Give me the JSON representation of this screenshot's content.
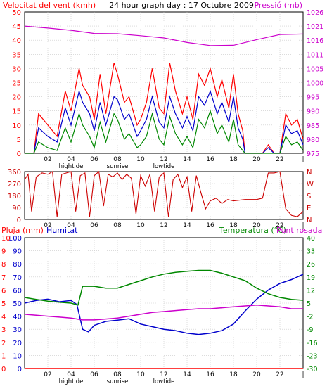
{
  "header": {
    "left_label": "Velocitat del vent (kmh)",
    "center_title": "24 hour graph day : 17 Octubre 2009",
    "right_label": "Pressió (mb)"
  },
  "chart_data": [
    {
      "type": "line",
      "panel": "wind-pressure",
      "x_ticks": [
        "02",
        "04",
        "06",
        "08",
        "10",
        "12",
        "14",
        "16",
        "18",
        "20",
        "22",
        "|"
      ],
      "y_left": {
        "label": "Velocitat del vent (kmh)",
        "ticks": [
          0,
          5,
          10,
          15,
          20,
          25,
          30,
          35,
          40,
          45,
          50
        ],
        "ylim": [
          0,
          50
        ],
        "color": "#ff0000"
      },
      "y_right": {
        "label": "Pressió (mb)",
        "ticks": [
          975,
          980,
          985,
          990,
          995,
          1000,
          1005,
          1011,
          1016,
          1021,
          1026
        ],
        "color": "#cc00cc"
      },
      "annotations": [
        "hightide",
        "sunrise",
        "lowtide"
      ],
      "series": [
        {
          "color": "#cc00cc",
          "axis": "right",
          "x": [
            0,
            2,
            4,
            6,
            8,
            10,
            12,
            14,
            16,
            18,
            20,
            22,
            24
          ],
          "y": [
            1021,
            1020.3,
            1019.5,
            1018.4,
            1018.3,
            1017.6,
            1016.8,
            1015.2,
            1014.1,
            1014.2,
            1016.2,
            1018,
            1018.2
          ]
        },
        {
          "color": "#ff0000",
          "axis": "left",
          "x": [
            0,
            0.8,
            1.2,
            2,
            2.8,
            3.5,
            4,
            4.7,
            5,
            5.6,
            6,
            6.5,
            7,
            7.7,
            8,
            8.6,
            9,
            9.7,
            10,
            10.5,
            11,
            11.6,
            12,
            12.5,
            13,
            13.6,
            14,
            14.5,
            15,
            15.5,
            16,
            16.6,
            17,
            17.6,
            18,
            18.4,
            18.8,
            19,
            20,
            20.5,
            21,
            21.5,
            22,
            22.5,
            23,
            23.5,
            24
          ],
          "y": [
            0,
            0,
            14,
            10,
            6,
            22,
            15,
            30,
            24,
            20,
            12,
            28,
            14,
            32,
            28,
            18,
            20,
            10,
            12,
            18,
            30,
            16,
            14,
            32,
            22,
            14,
            20,
            12,
            28,
            24,
            30,
            20,
            26,
            16,
            28,
            14,
            8,
            0,
            0,
            0,
            3,
            0,
            0,
            14,
            10,
            12,
            5
          ]
        },
        {
          "color": "#0000cc",
          "axis": "left",
          "x": [
            0,
            0.8,
            1.2,
            2,
            2.8,
            3.5,
            4,
            4.7,
            5,
            5.6,
            6,
            6.5,
            7,
            7.7,
            8,
            8.6,
            9,
            9.7,
            10,
            10.5,
            11,
            11.6,
            12,
            12.5,
            13,
            13.6,
            14,
            14.5,
            15,
            15.5,
            16,
            16.6,
            17,
            17.6,
            18,
            18.4,
            18.8,
            19,
            20,
            20.5,
            21,
            21.5,
            22,
            22.5,
            23,
            23.5,
            24
          ],
          "y": [
            0,
            0,
            9,
            6,
            4,
            16,
            10,
            22,
            18,
            14,
            8,
            18,
            10,
            20,
            19,
            12,
            14,
            6,
            8,
            12,
            20,
            11,
            9,
            20,
            14,
            9,
            13,
            8,
            20,
            17,
            22,
            14,
            18,
            11,
            20,
            9,
            5,
            0,
            0,
            0,
            2,
            0,
            0,
            10,
            7,
            8,
            3
          ]
        },
        {
          "color": "#008800",
          "axis": "left",
          "x": [
            0,
            0.8,
            1.2,
            2,
            2.8,
            3.5,
            4,
            4.7,
            5,
            5.6,
            6,
            6.5,
            7,
            7.7,
            8,
            8.6,
            9,
            9.7,
            10,
            10.5,
            11,
            11.6,
            12,
            12.5,
            13,
            13.6,
            14,
            14.5,
            15,
            15.5,
            16,
            16.6,
            17,
            17.6,
            18,
            18.4,
            18.8,
            19,
            20,
            20.5,
            21,
            21.5,
            22,
            22.5,
            23,
            23.5,
            24
          ],
          "y": [
            0,
            0,
            4,
            2,
            1,
            9,
            4,
            14,
            10,
            6,
            2,
            11,
            4,
            14,
            12,
            5,
            7,
            2,
            3,
            6,
            14,
            5,
            3,
            13,
            7,
            3,
            6,
            2,
            12,
            9,
            15,
            7,
            10,
            4,
            12,
            3,
            1,
            0,
            0,
            0,
            0,
            0,
            0,
            6,
            3,
            4,
            1
          ]
        }
      ]
    },
    {
      "type": "line",
      "panel": "wind-direction",
      "x_ticks": [
        "02",
        "04",
        "06",
        "08",
        "10",
        "12",
        "14",
        "16",
        "18",
        "20",
        "22",
        "|"
      ],
      "y_left": {
        "ticks": [
          0,
          90,
          180,
          270,
          360
        ],
        "ylim": [
          0,
          360
        ]
      },
      "y_right": {
        "ticks": [
          "N",
          "E",
          "S",
          "W",
          "N"
        ],
        "color": "#cc0000"
      },
      "series": [
        {
          "color": "#cc0000",
          "x": [
            0,
            0.3,
            0.6,
            1,
            1.5,
            2,
            2.4,
            2.8,
            3.2,
            3.6,
            4,
            4.4,
            4.8,
            5.2,
            5.6,
            6,
            6.4,
            6.8,
            7.2,
            7.6,
            8,
            8.4,
            8.8,
            9.2,
            9.6,
            10,
            10.4,
            10.8,
            11.2,
            11.6,
            12,
            12.4,
            12.8,
            13.2,
            13.6,
            14,
            14.4,
            14.8,
            15.2,
            15.6,
            16,
            16.5,
            17,
            17.5,
            18,
            19,
            20,
            20.5,
            21,
            21.5,
            22,
            22.5,
            23,
            23.5,
            24
          ],
          "y": [
            300,
            340,
            60,
            320,
            350,
            340,
            360,
            20,
            340,
            350,
            360,
            60,
            330,
            350,
            20,
            330,
            360,
            100,
            340,
            320,
            350,
            300,
            340,
            310,
            40,
            330,
            250,
            340,
            60,
            320,
            350,
            20,
            300,
            340,
            240,
            320,
            60,
            330,
            200,
            80,
            140,
            160,
            120,
            150,
            140,
            150,
            150,
            160,
            350,
            350,
            360,
            80,
            30,
            20,
            60
          ]
        }
      ]
    },
    {
      "type": "line",
      "panel": "rain-humidity-temperature",
      "x_ticks": [
        "02",
        "04",
        "06",
        "08",
        "10",
        "12",
        "14",
        "16",
        "18",
        "20",
        "22",
        "|"
      ],
      "annotations": [
        "hightide",
        "sunrise",
        "lowtide"
      ],
      "y_left": {
        "label": "Pluja (mm)",
        "ticks": [
          0,
          1,
          2,
          3,
          4,
          5,
          6,
          7,
          8,
          9,
          10
        ],
        "color": "#ff0000"
      },
      "y_humidity": {
        "label": "Humitat",
        "ticks": [
          0,
          10,
          20,
          30,
          40,
          50,
          60,
          70,
          80,
          90,
          100
        ],
        "color": "#0000cc"
      },
      "y_right": {
        "label": "Temperatura (°C)",
        "label2": "Punt rosada",
        "ticks": [
          -30,
          -23,
          -16,
          -9,
          -2,
          5,
          12,
          19,
          26,
          33,
          40
        ],
        "color": "#008800",
        "color2": "#cc00cc"
      },
      "series": [
        {
          "name": "Humitat",
          "color": "#0000cc",
          "axis": "humidity",
          "x": [
            0,
            1,
            2,
            3,
            4,
            4.5,
            5,
            5.5,
            6,
            7,
            8,
            9,
            10,
            11,
            12,
            13,
            14,
            15,
            16,
            17,
            18,
            19,
            20,
            21,
            22,
            23,
            24
          ],
          "y": [
            50,
            52,
            53,
            51,
            52,
            49,
            30,
            28,
            33,
            36,
            37,
            38,
            34,
            32,
            30,
            29,
            27,
            26,
            27,
            29,
            34,
            44,
            53,
            60,
            65,
            68,
            72
          ]
        },
        {
          "name": "Temperatura (°C)",
          "color": "#008800",
          "axis": "right",
          "x": [
            0,
            1,
            2,
            3,
            4,
            4.6,
            5,
            6,
            7,
            8,
            9,
            10,
            11,
            12,
            13,
            14,
            15,
            16,
            17,
            18,
            19,
            20,
            21,
            22,
            23,
            24
          ],
          "y": [
            8,
            7,
            6,
            5.5,
            5,
            4,
            14,
            14,
            13,
            13,
            15,
            17,
            19,
            20.5,
            21.5,
            22,
            22.5,
            22.5,
            21,
            19,
            17,
            13,
            10,
            8,
            7,
            6.5
          ]
        },
        {
          "name": "Punt rosada",
          "color": "#cc00cc",
          "axis": "right",
          "x": [
            0,
            1,
            2,
            3,
            4,
            5,
            6,
            7,
            8,
            9,
            10,
            11,
            12,
            13,
            14,
            15,
            16,
            17,
            18,
            19,
            20,
            21,
            22,
            23,
            24
          ],
          "y": [
            -1,
            -1.5,
            -2,
            -2.5,
            -3,
            -4,
            -4,
            -3.5,
            -3,
            -2,
            -1,
            0,
            0.5,
            1,
            1.5,
            2,
            2,
            2.5,
            3,
            3.5,
            4,
            3.5,
            3,
            2,
            2
          ]
        },
        {
          "name": "Pluja (mm)",
          "color": "#ff0000",
          "axis": "left",
          "x": [
            0,
            24
          ],
          "y": [
            0,
            0
          ]
        }
      ]
    }
  ]
}
